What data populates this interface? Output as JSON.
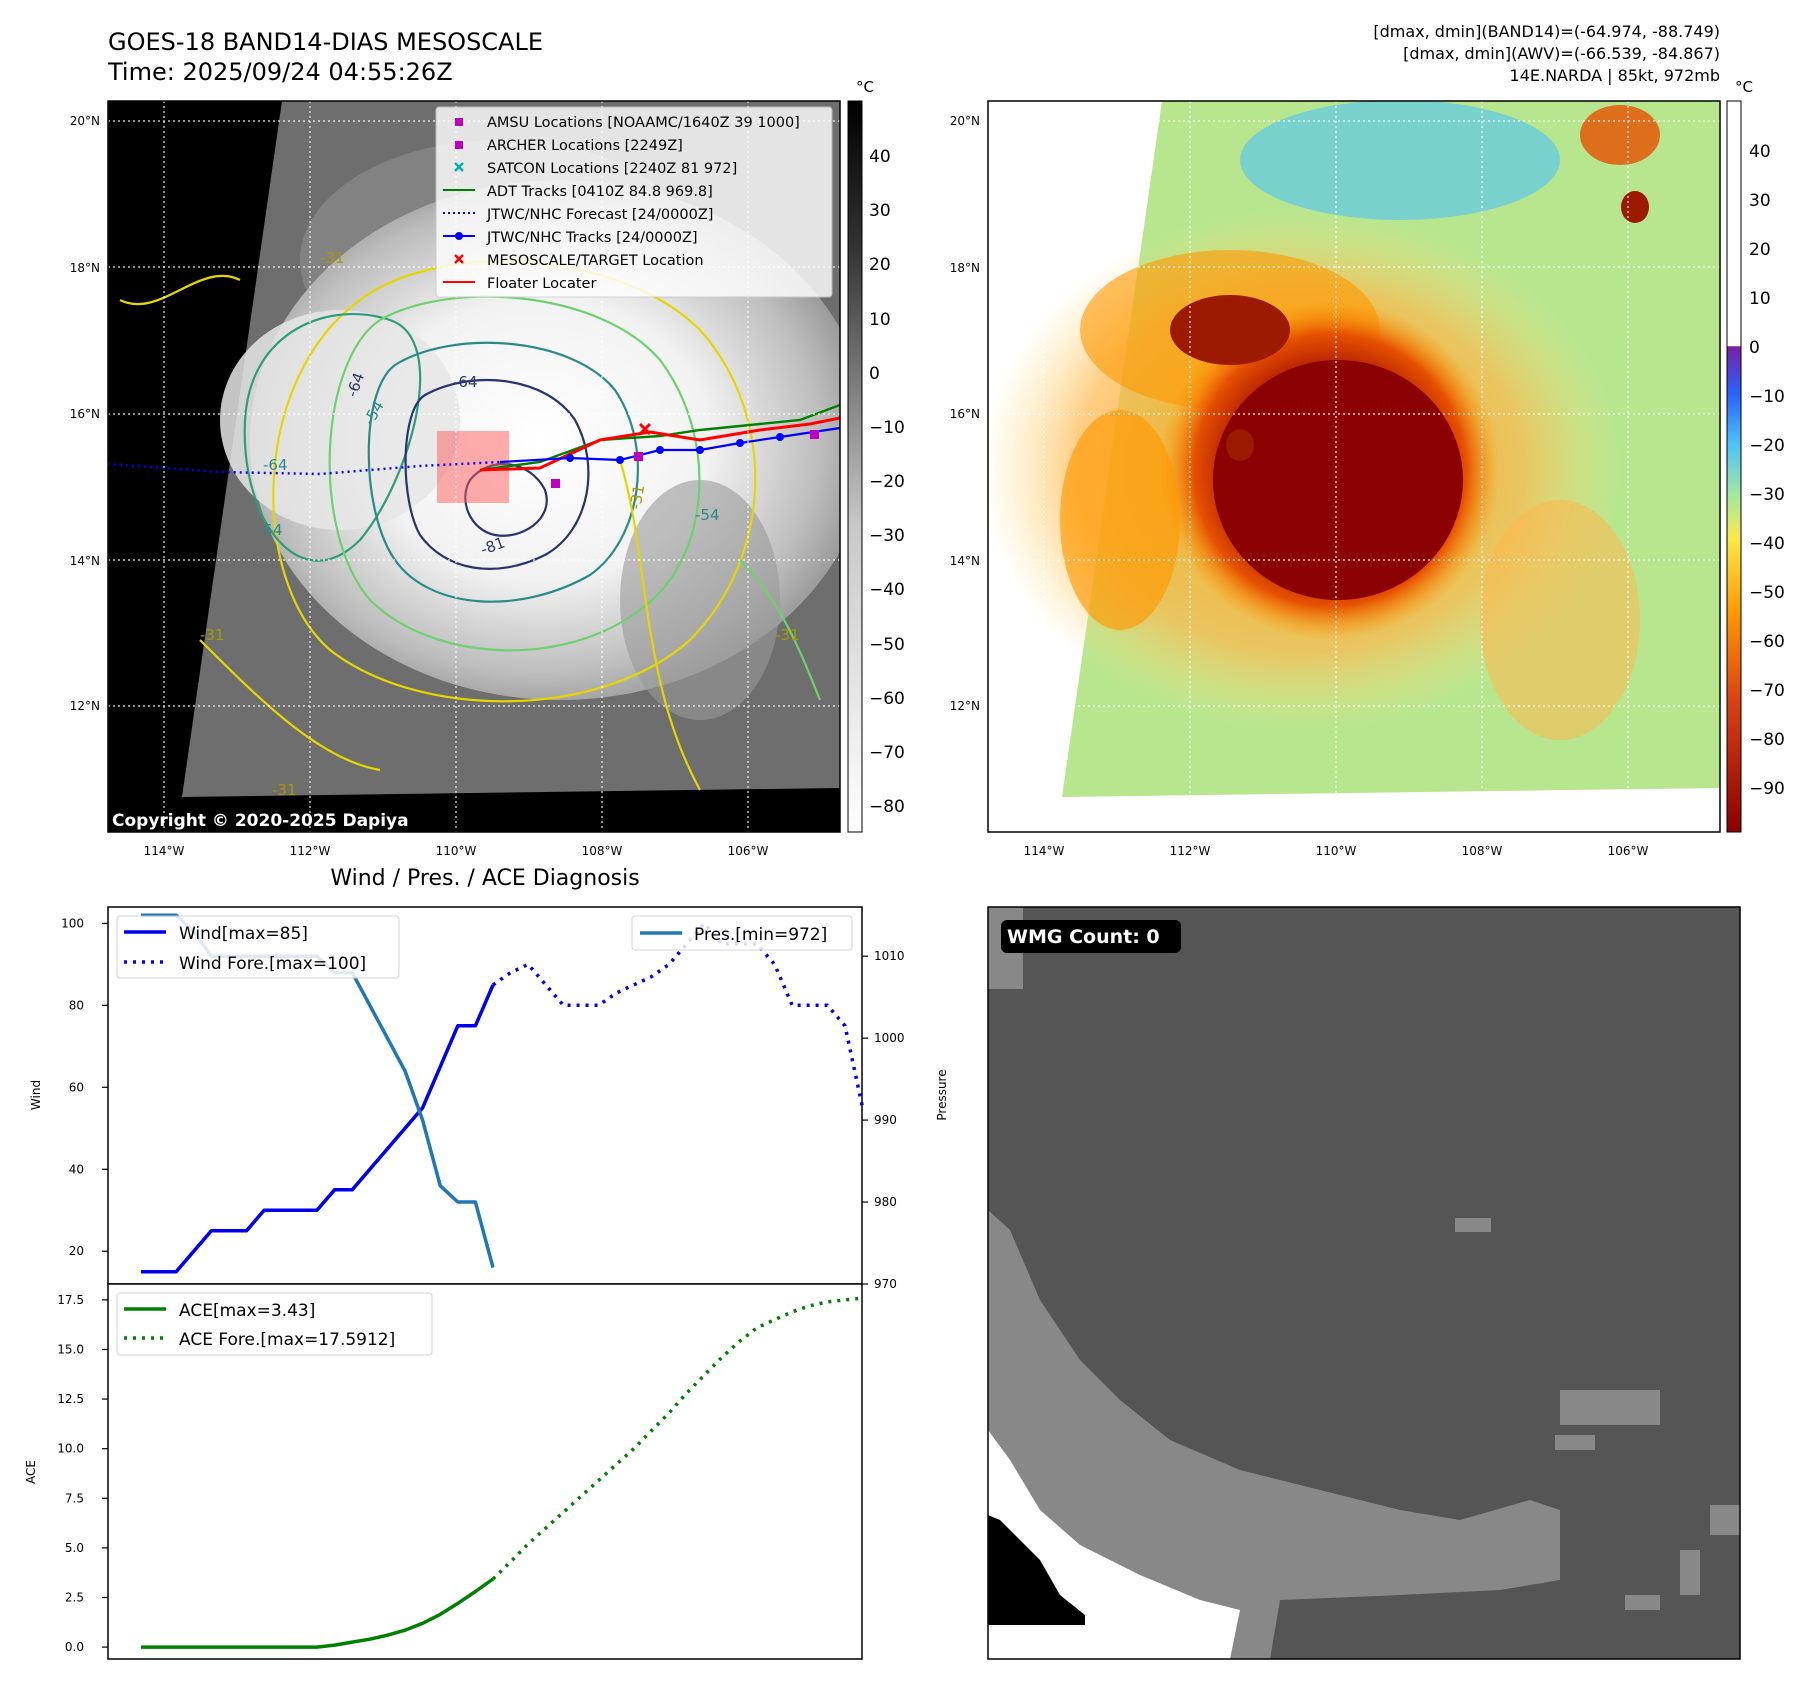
{
  "panel_ir": {
    "title_line1": "GOES-18 BAND14-DIAS MESOSCALE",
    "title_line2": "Time: 2025/09/24 04:55:26Z",
    "copyright": "Copyright © 2020-2025 Dapiya",
    "lat_ticks": [
      "20°N",
      "18°N",
      "16°N",
      "14°N",
      "12°N"
    ],
    "lon_ticks": [
      "114°W",
      "112°W",
      "110°W",
      "108°W",
      "106°W"
    ],
    "contour_labels": [
      "-64",
      "-64",
      "-54",
      "-64",
      "-54",
      "-54",
      "-31",
      "-81",
      "-31",
      "-31",
      "-31",
      "-31"
    ],
    "colorbar": {
      "unit": "°C",
      "ticks": [
        "40",
        "30",
        "20",
        "10",
        "0",
        "−10",
        "−20",
        "−30",
        "−40",
        "−50",
        "−60",
        "−70",
        "−80"
      ]
    },
    "legend": [
      {
        "label": "AMSU Locations [NOAAMC/1640Z 39 1000]",
        "marker": "square",
        "color": "#c000c0"
      },
      {
        "label": "ARCHER Locations [2249Z]",
        "marker": "square",
        "color": "#c000c0"
      },
      {
        "label": "SATCON Locations [2240Z 81 972]",
        "marker": "x",
        "color": "#00b0b0"
      },
      {
        "label": "ADT Tracks [0410Z 84.8 969.8]",
        "marker": "line",
        "color": "#008000"
      },
      {
        "label": "JTWC/NHC Forecast [24/0000Z]",
        "marker": "dotted",
        "color": "#0000ff"
      },
      {
        "label": "JTWC/NHC Tracks [24/0000Z]",
        "marker": "line-dot",
        "color": "#0000ff"
      },
      {
        "label": "MESOSCALE/TARGET Location",
        "marker": "x",
        "color": "#ff0000"
      },
      {
        "label": "Floater Locater",
        "marker": "line",
        "color": "#ff0000"
      }
    ]
  },
  "panel_awv": {
    "info_line1": "[dmax, dmin](BAND14)=(-64.974, -88.749)",
    "info_line2": "[dmax, dmin](AWV)=(-66.539, -84.867)",
    "info_line3": "14E.NARDA | 85kt, 972mb",
    "lat_ticks": [
      "20°N",
      "18°N",
      "16°N",
      "14°N",
      "12°N"
    ],
    "lon_ticks": [
      "114°W",
      "112°W",
      "110°W",
      "108°W",
      "106°W"
    ],
    "colorbar": {
      "unit": "°C",
      "ticks": [
        "40",
        "30",
        "20",
        "10",
        "0",
        "−10",
        "−20",
        "−30",
        "−40",
        "−50",
        "−60",
        "−70",
        "−80",
        "−90"
      ]
    }
  },
  "panel_wmg": {
    "badge": "WMG Count: 0"
  },
  "chart_data": [
    {
      "type": "line",
      "title": "Wind / Pres. / ACE Diagnosis",
      "ylabel": "Wind",
      "ylabel_right": "Pressure",
      "ylim": [
        12,
        104
      ],
      "ylim_right": [
        970,
        1016
      ],
      "yticks": [
        20,
        40,
        60,
        80,
        100
      ],
      "yticks_right": [
        970,
        980,
        990,
        1000,
        1010
      ],
      "series": [
        {
          "name": "Wind[max=85]",
          "style": "solid",
          "color": "#0000ee",
          "axis": "left",
          "x": [
            0,
            1,
            2,
            3,
            4,
            5,
            6,
            7,
            8,
            9,
            10,
            11,
            12,
            13,
            14,
            15,
            16,
            17,
            18,
            19,
            20
          ],
          "values": [
            15,
            15,
            15,
            20,
            25,
            25,
            25,
            30,
            30,
            30,
            30,
            35,
            35,
            40,
            45,
            50,
            55,
            65,
            75,
            75,
            85
          ]
        },
        {
          "name": "Wind Fore.[max=100]",
          "style": "dotted",
          "color": "#0000ee",
          "axis": "left",
          "x": [
            20,
            21,
            22,
            23,
            24,
            25,
            26,
            27,
            28,
            29,
            30,
            31,
            32,
            33,
            34,
            35,
            36,
            37,
            38,
            39,
            40,
            41
          ],
          "values": [
            85,
            88,
            90,
            85,
            80,
            80,
            80,
            83,
            85,
            87,
            90,
            95,
            100,
            95,
            95,
            95,
            90,
            80,
            80,
            80,
            75,
            55
          ]
        },
        {
          "name": "Pres.[min=972]",
          "style": "solid",
          "color": "#1f77b4",
          "axis": "right",
          "x": [
            0,
            1,
            2,
            3,
            4,
            5,
            6,
            7,
            8,
            9,
            10,
            11,
            12,
            13,
            14,
            15,
            16,
            17,
            18,
            19,
            20
          ],
          "values": [
            1015,
            1015,
            1015,
            1013,
            1010,
            1010,
            1010,
            1010,
            1010,
            1010,
            1010,
            1008,
            1008,
            1004,
            1000,
            996,
            990,
            982,
            980,
            980,
            972
          ]
        }
      ]
    },
    {
      "type": "line",
      "ylabel": "ACE",
      "ylim": [
        -0.6,
        18.3
      ],
      "yticks": [
        0.0,
        2.5,
        5.0,
        7.5,
        10.0,
        12.5,
        15.0,
        17.5
      ],
      "series": [
        {
          "name": "ACE[max=3.43]",
          "style": "solid",
          "color": "#008000",
          "x": [
            0,
            1,
            2,
            3,
            4,
            5,
            6,
            7,
            8,
            9,
            10,
            11,
            12,
            13,
            14,
            15,
            16,
            17,
            18,
            19,
            20
          ],
          "values": [
            0,
            0,
            0,
            0,
            0,
            0,
            0,
            0,
            0,
            0,
            0,
            0.1,
            0.25,
            0.4,
            0.6,
            0.85,
            1.2,
            1.65,
            2.2,
            2.8,
            3.43
          ]
        },
        {
          "name": "ACE Fore.[max=17.5912]",
          "style": "dotted",
          "color": "#008000",
          "x": [
            20,
            21,
            22,
            23,
            24,
            25,
            26,
            27,
            28,
            29,
            30,
            31,
            32,
            33,
            34,
            35,
            36,
            37,
            38,
            39,
            40,
            41
          ],
          "values": [
            3.43,
            4.3,
            5.2,
            6.0,
            6.8,
            7.6,
            8.4,
            9.2,
            10.0,
            10.9,
            11.8,
            12.8,
            13.7,
            14.6,
            15.4,
            16.1,
            16.5,
            16.9,
            17.2,
            17.4,
            17.5,
            17.59
          ]
        }
      ]
    }
  ]
}
